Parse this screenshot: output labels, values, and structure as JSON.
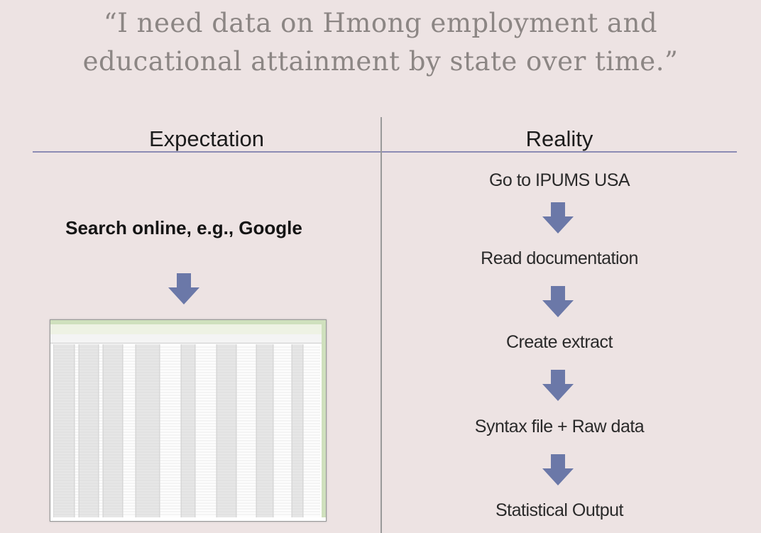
{
  "quote": {
    "line1": "“I need data on Hmong employment and",
    "line2": "educational attainment by state over time.”"
  },
  "columns": {
    "expectation": "Expectation",
    "reality": "Reality"
  },
  "expectation": {
    "step": "Search online, e.g., Google"
  },
  "reality": {
    "steps": [
      "Go to IPUMS USA",
      "Read documentation",
      "Create  extract",
      "Syntax file + Raw data",
      "Statistical Output"
    ]
  },
  "colors": {
    "arrow": "#6b78a8",
    "divider": "#8c8cb4",
    "background": "#ede3e3"
  }
}
